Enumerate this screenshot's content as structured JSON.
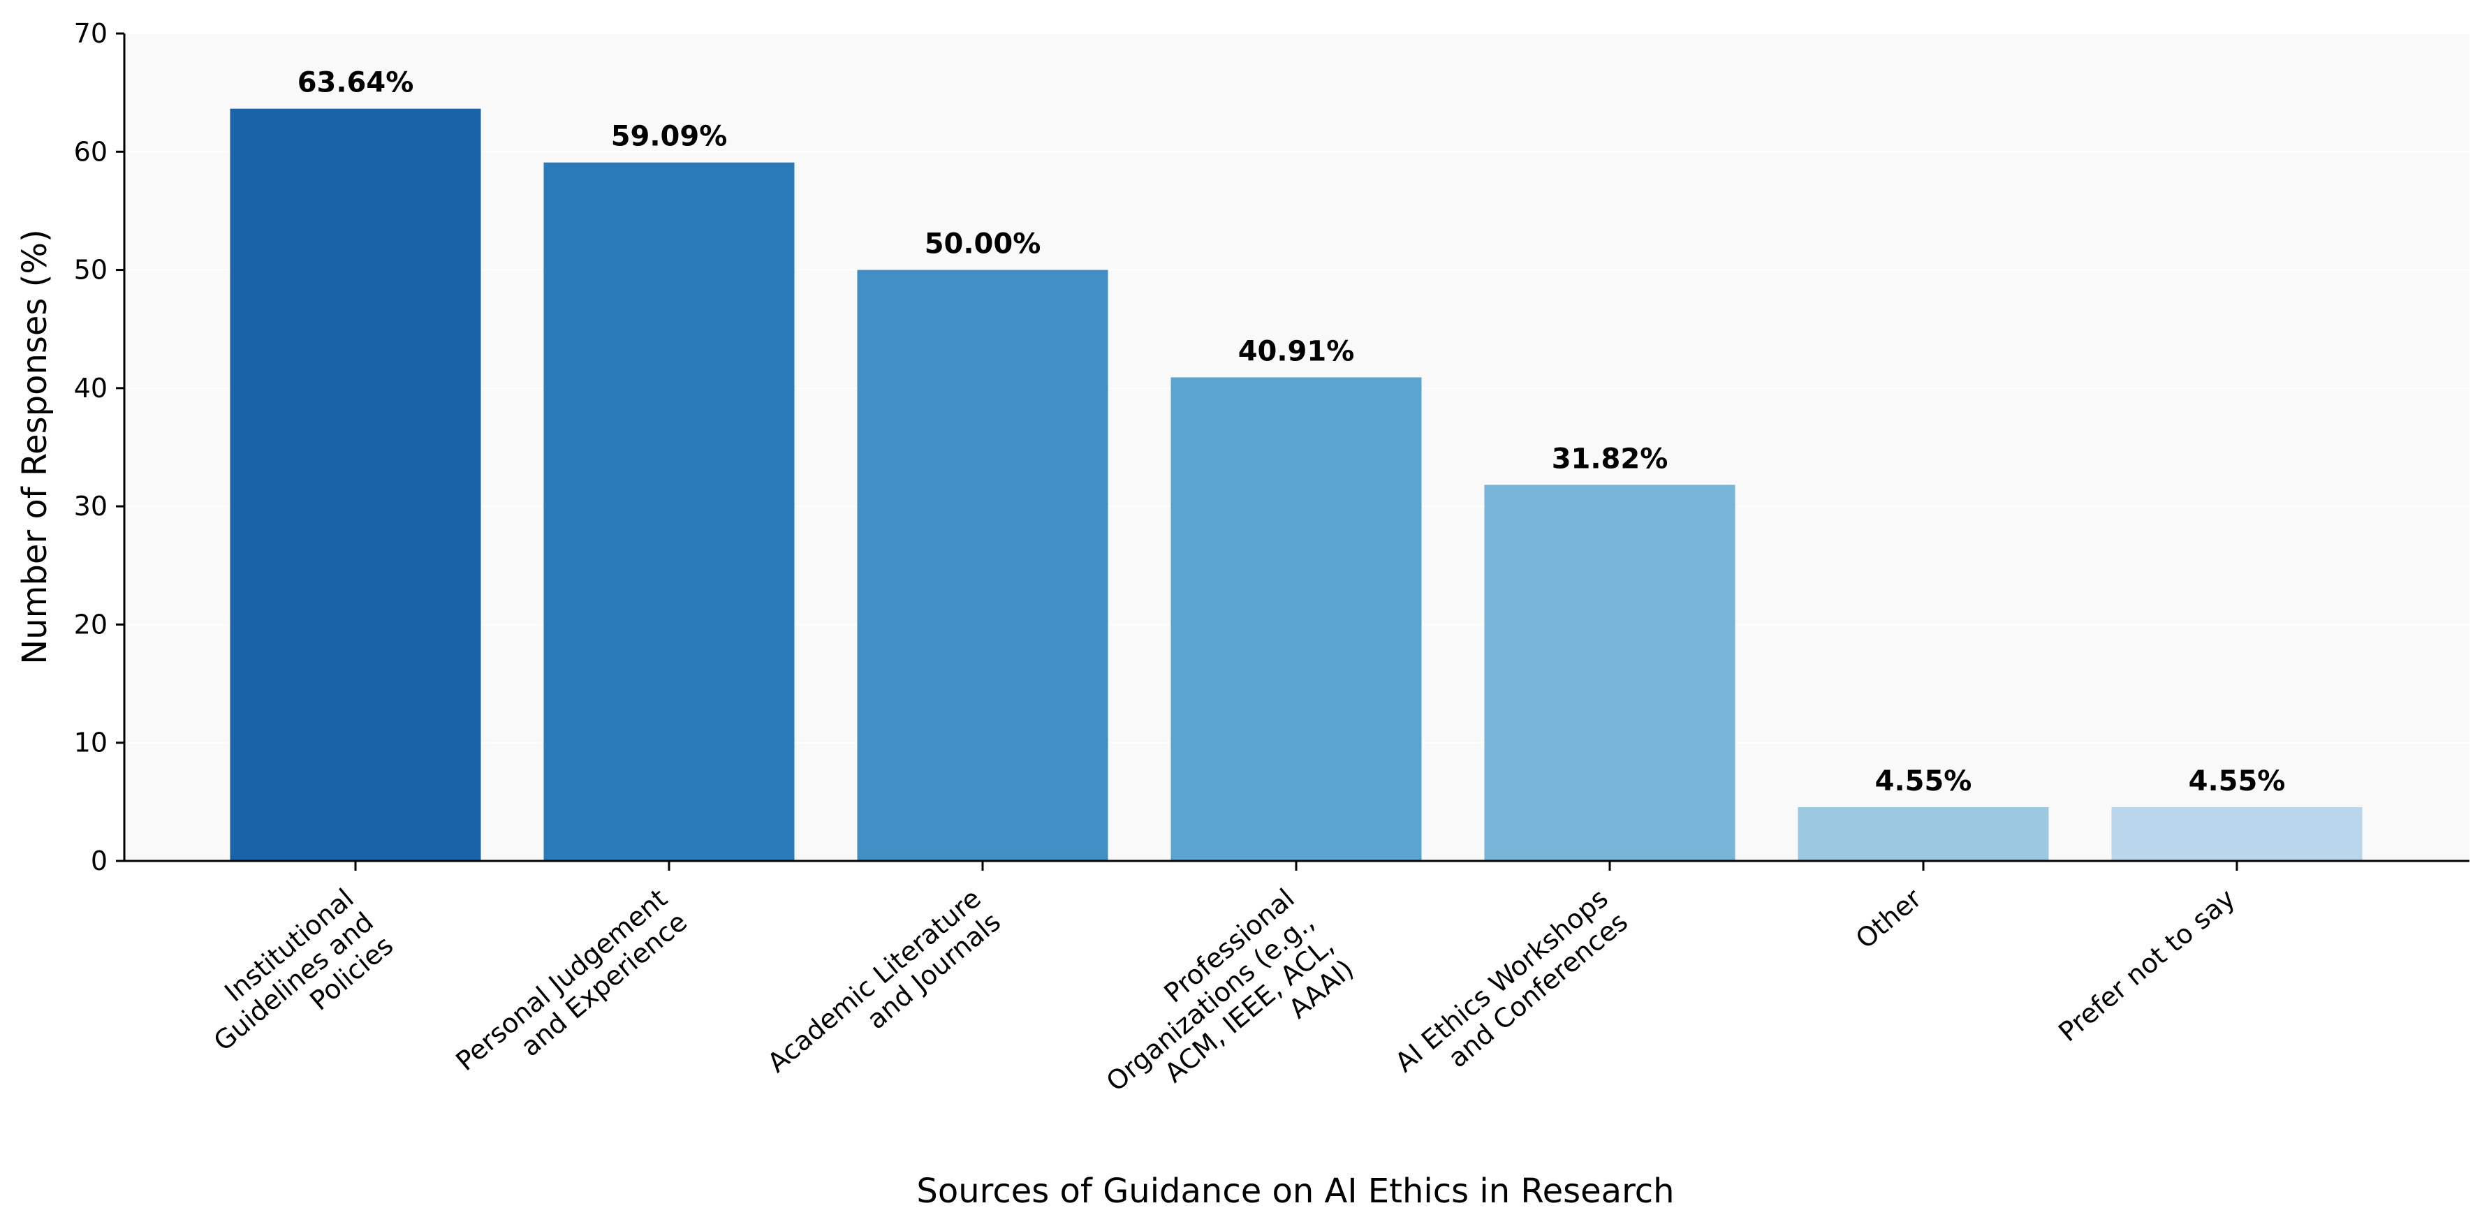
{
  "chart_data": {
    "type": "bar",
    "title": "",
    "xlabel": "Sources of Guidance on AI Ethics in Research",
    "ylabel": "Number of Responses (%)",
    "ylim": [
      0,
      70
    ],
    "yticks": [
      0,
      10,
      20,
      30,
      40,
      50,
      60,
      70
    ],
    "grid": "horizontal, faint",
    "categories": [
      [
        "Institutional",
        "Guidelines and",
        "Policies"
      ],
      [
        "Personal Judgement",
        "and Experience"
      ],
      [
        "Academic Literature",
        "and Journals"
      ],
      [
        "Professional",
        "Organizations (e.g.,",
        "ACM, IEEE, ACL,",
        "AAAI)"
      ],
      [
        "AI Ethics Workshops",
        "and Conferences"
      ],
      [
        "Other"
      ],
      [
        "Prefer not to say"
      ]
    ],
    "values": [
      63.64,
      59.09,
      50.0,
      40.91,
      31.82,
      4.55,
      4.55
    ],
    "value_labels": [
      "63.64%",
      "59.09%",
      "50.00%",
      "40.91%",
      "31.82%",
      "4.55%",
      "4.55%"
    ],
    "colors": [
      "#1a63a8",
      "#2b7bba",
      "#4090c5",
      "#5ba3d0",
      "#79b4d9",
      "#9cc8e0",
      "#b9d6ec"
    ]
  }
}
